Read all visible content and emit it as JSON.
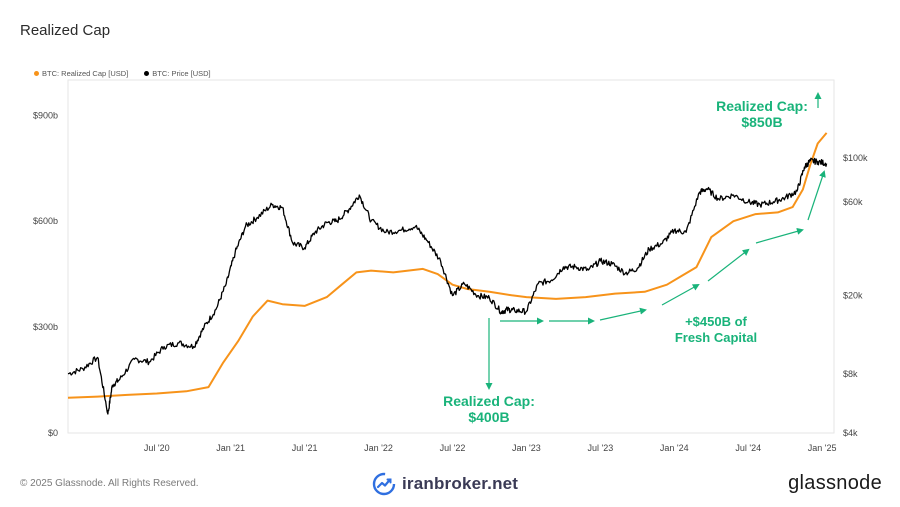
{
  "header": {
    "title": "Realized Cap"
  },
  "footer": {
    "copyright": "© 2025 Glassnode. All Rights Reserved.",
    "watermark": "iranbroker.net",
    "brand": "glassnode"
  },
  "colors": {
    "realized": "#F7931A",
    "price": "#000000",
    "annotation": "#19B37A"
  },
  "chart_data": {
    "type": "line",
    "title": "Realized Cap",
    "legend_position": "top-left",
    "grid": false,
    "legend": [
      "BTC: Realized Cap [USD]",
      "BTC: Price [USD]"
    ],
    "x_tick_labels": [
      "Jul '20",
      "Jan '21",
      "Jul '21",
      "Jan '22",
      "Jul '22",
      "Jan '23",
      "Jul '23",
      "Jan '24",
      "Jul '24",
      "Jan '25"
    ],
    "x_tick_values": [
      2020.5,
      2021.0,
      2021.5,
      2022.0,
      2022.5,
      2023.0,
      2023.5,
      2024.0,
      2024.5,
      2025.0
    ],
    "xlim": [
      2019.9,
      2025.08
    ],
    "y_left": {
      "unit": "USD (b)",
      "lim": [
        0,
        1000
      ],
      "ticks": [
        0,
        300,
        600,
        900
      ],
      "tick_labels": [
        "$0",
        "$300b",
        "$600b",
        "$900b"
      ]
    },
    "y_right": {
      "scale": "log",
      "lim": [
        4000,
        250000
      ],
      "ticks": [
        4000,
        8000,
        20000,
        60000,
        100000
      ],
      "tick_labels": [
        "$4k",
        "$8k",
        "$20k",
        "$60k",
        "$100k"
      ]
    },
    "series": [
      {
        "name": "BTC: Realized Cap [USD]",
        "axis": "left",
        "x": [
          2019.9,
          2020.1,
          2020.3,
          2020.5,
          2020.7,
          2020.85,
          2020.95,
          2021.05,
          2021.15,
          2021.25,
          2021.35,
          2021.5,
          2021.65,
          2021.75,
          2021.85,
          2021.95,
          2022.1,
          2022.2,
          2022.3,
          2022.4,
          2022.5,
          2022.6,
          2022.75,
          2022.9,
          2023.0,
          2023.2,
          2023.4,
          2023.6,
          2023.8,
          2023.95,
          2024.05,
          2024.15,
          2024.25,
          2024.4,
          2024.55,
          2024.7,
          2024.8,
          2024.87,
          2024.92,
          2024.97,
          2025.03
        ],
        "values": [
          100,
          103,
          108,
          112,
          118,
          130,
          200,
          260,
          330,
          375,
          365,
          360,
          385,
          420,
          455,
          460,
          455,
          460,
          465,
          450,
          420,
          408,
          400,
          390,
          385,
          380,
          385,
          395,
          400,
          420,
          445,
          470,
          555,
          600,
          620,
          625,
          640,
          690,
          760,
          820,
          850
        ]
      },
      {
        "name": "BTC: Price [USD]",
        "axis": "right",
        "x": [
          2019.9,
          2020.0,
          2020.1,
          2020.17,
          2020.2,
          2020.25,
          2020.35,
          2020.45,
          2020.55,
          2020.65,
          2020.75,
          2020.82,
          2020.9,
          2020.97,
          2021.03,
          2021.1,
          2021.18,
          2021.28,
          2021.35,
          2021.42,
          2021.5,
          2021.57,
          2021.65,
          2021.72,
          2021.8,
          2021.87,
          2021.95,
          2022.05,
          2022.15,
          2022.25,
          2022.33,
          2022.42,
          2022.5,
          2022.58,
          2022.67,
          2022.75,
          2022.83,
          2022.87,
          2022.92,
          2023.0,
          2023.08,
          2023.17,
          2023.25,
          2023.33,
          2023.42,
          2023.5,
          2023.58,
          2023.67,
          2023.75,
          2023.83,
          2023.92,
          2024.0,
          2024.08,
          2024.17,
          2024.22,
          2024.3,
          2024.4,
          2024.5,
          2024.58,
          2024.67,
          2024.75,
          2024.83,
          2024.88,
          2024.92,
          2024.97,
          2025.03
        ],
        "values": [
          8000,
          8500,
          9700,
          5000,
          7000,
          7500,
          9500,
          9200,
          11000,
          11500,
          11000,
          13800,
          17000,
          23000,
          33000,
          45000,
          50000,
          58000,
          56000,
          37000,
          35000,
          42000,
          47000,
          48000,
          55000,
          65000,
          48000,
          42000,
          43000,
          45000,
          38000,
          30000,
          20000,
          23000,
          20000,
          19500,
          16500,
          17000,
          16800,
          16600,
          23000,
          24000,
          28000,
          28000,
          27000,
          30000,
          29000,
          26000,
          27500,
          34500,
          37000,
          43000,
          42000,
          67000,
          70000,
          62000,
          65000,
          60000,
          58000,
          60000,
          63000,
          68000,
          90000,
          97000,
          96000,
          94000
        ]
      }
    ],
    "annotations": [
      {
        "line1": "Realized Cap:",
        "line2": "$850B"
      },
      {
        "line1": "Realized Cap:",
        "line2": "$400B"
      },
      {
        "line1": "+$450B of",
        "line2": "Fresh Capital"
      }
    ]
  }
}
